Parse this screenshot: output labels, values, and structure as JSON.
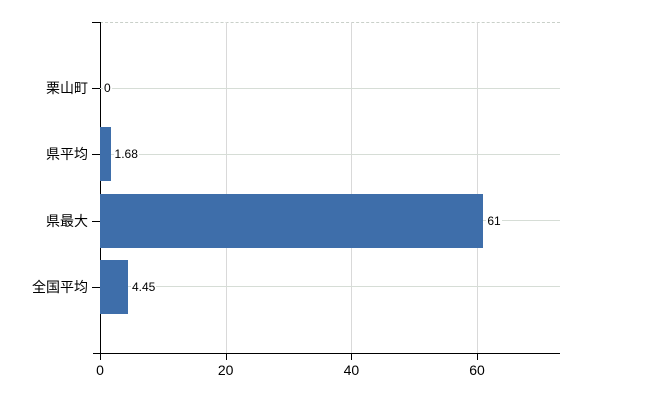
{
  "chart_data": {
    "type": "bar",
    "orientation": "horizontal",
    "categories": [
      "栗山町",
      "県平均",
      "県最大",
      "全国平均"
    ],
    "values": [
      0,
      1.68,
      61,
      4.45
    ],
    "value_labels": [
      "0",
      "1.68",
      "61",
      "4.45"
    ],
    "xticks": [
      0,
      20,
      40,
      60
    ],
    "xtick_labels": [
      "0",
      "20",
      "40",
      "60"
    ],
    "xlim": [
      0,
      73.2
    ],
    "grid": true,
    "legend": false,
    "colors": {
      "bar": "#3e6eaa",
      "axis": "#000000",
      "grid_vertical": "#d9d9d9",
      "grid_horizontal": "#d6ddd6",
      "top_boundary": "#c9d0c9",
      "background": "#ffffff",
      "text": "#000000"
    }
  }
}
